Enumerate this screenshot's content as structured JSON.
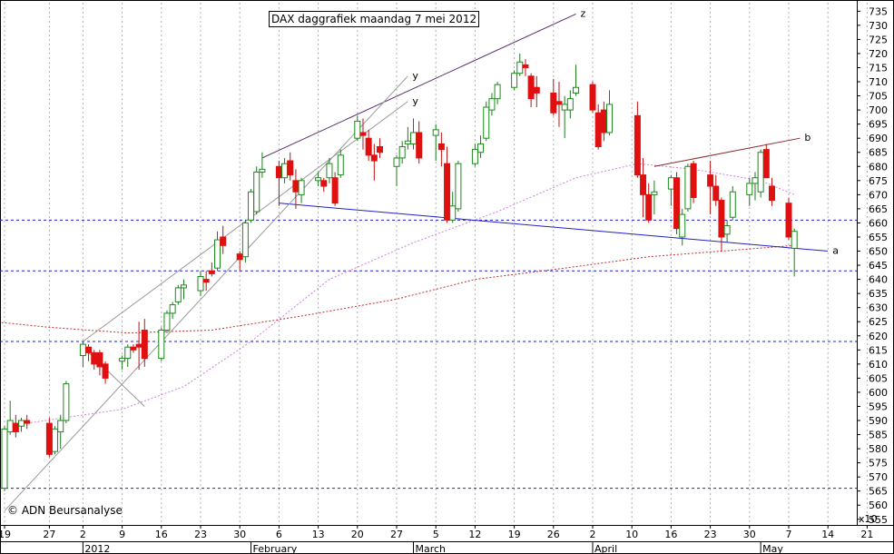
{
  "title": "DAX daggrafiek maandag 7 mei 2012",
  "copyright": "© ADN Beursanalyse",
  "scale_label": "x10",
  "chart_data": {
    "type": "candlestick",
    "title": "DAX daggrafiek maandag 7 mei 2012",
    "price_scale_factor": 10,
    "ylim": [
      553,
      738
    ],
    "y_ticks": [
      555,
      560,
      565,
      570,
      575,
      580,
      585,
      590,
      595,
      600,
      605,
      610,
      615,
      620,
      625,
      630,
      635,
      640,
      645,
      650,
      655,
      660,
      665,
      670,
      675,
      680,
      685,
      690,
      695,
      700,
      705,
      710,
      715,
      720,
      725,
      730,
      735
    ],
    "x_tick_labels": [
      {
        "date": "2011-12-19",
        "label": "19"
      },
      {
        "date": "2011-12-27",
        "label": "27"
      },
      {
        "date": "2012-01-02",
        "label": "2"
      },
      {
        "date": "2012-01-09",
        "label": "9"
      },
      {
        "date": "2012-01-16",
        "label": "16"
      },
      {
        "date": "2012-01-23",
        "label": "23"
      },
      {
        "date": "2012-01-30",
        "label": "30"
      },
      {
        "date": "2012-02-06",
        "label": "6"
      },
      {
        "date": "2012-02-13",
        "label": "13"
      },
      {
        "date": "2012-02-20",
        "label": "20"
      },
      {
        "date": "2012-02-27",
        "label": "27"
      },
      {
        "date": "2012-03-05",
        "label": "5"
      },
      {
        "date": "2012-03-12",
        "label": "12"
      },
      {
        "date": "2012-03-19",
        "label": "19"
      },
      {
        "date": "2012-03-26",
        "label": "26"
      },
      {
        "date": "2012-04-02",
        "label": "2"
      },
      {
        "date": "2012-04-09",
        "label": "10"
      },
      {
        "date": "2012-04-16",
        "label": "16"
      },
      {
        "date": "2012-04-23",
        "label": "23"
      },
      {
        "date": "2012-04-30",
        "label": "30"
      },
      {
        "date": "2012-05-07",
        "label": "7"
      },
      {
        "date": "2012-05-14",
        "label": "14"
      },
      {
        "date": "2012-05-21",
        "label": "21"
      }
    ],
    "month_labels": [
      {
        "date": "2012-01-02",
        "label": "2012"
      },
      {
        "date": "2012-02-01",
        "label": "February"
      },
      {
        "date": "2012-03-01",
        "label": "March"
      },
      {
        "date": "2012-04-02",
        "label": "April"
      },
      {
        "date": "2012-05-02",
        "label": "May"
      }
    ],
    "candles": [
      {
        "date": "2011-12-19",
        "open": 566,
        "high": 588,
        "low": 565,
        "close": 587
      },
      {
        "date": "2011-12-20",
        "open": 586,
        "high": 597,
        "low": 585,
        "close": 590
      },
      {
        "date": "2011-12-21",
        "open": 589,
        "high": 592,
        "low": 584,
        "close": 586
      },
      {
        "date": "2011-12-22",
        "open": 588,
        "high": 591,
        "low": 586,
        "close": 590
      },
      {
        "date": "2011-12-23",
        "open": 590,
        "high": 592,
        "low": 587,
        "close": 589
      },
      {
        "date": "2011-12-27",
        "open": 589,
        "high": 591,
        "low": 577,
        "close": 578
      },
      {
        "date": "2011-12-28",
        "open": 579,
        "high": 588,
        "low": 578,
        "close": 587
      },
      {
        "date": "2011-12-29",
        "open": 586,
        "high": 592,
        "low": 580,
        "close": 590
      },
      {
        "date": "2011-12-30",
        "open": 590,
        "high": 604,
        "low": 589,
        "close": 603
      },
      {
        "date": "2012-01-02",
        "open": 613,
        "high": 618,
        "low": 609,
        "close": 617
      },
      {
        "date": "2012-01-03",
        "open": 616,
        "high": 617,
        "low": 611,
        "close": 614
      },
      {
        "date": "2012-01-04",
        "open": 614,
        "high": 615,
        "low": 608,
        "close": 610
      },
      {
        "date": "2012-01-05",
        "open": 614,
        "high": 615,
        "low": 606,
        "close": 609
      },
      {
        "date": "2012-01-06",
        "open": 610,
        "high": 611,
        "low": 603,
        "close": 605
      },
      {
        "date": "2012-01-09",
        "open": 611,
        "high": 613,
        "low": 608,
        "close": 612
      },
      {
        "date": "2012-01-10",
        "open": 612,
        "high": 617,
        "low": 609,
        "close": 616
      },
      {
        "date": "2012-01-11",
        "open": 616,
        "high": 617,
        "low": 614,
        "close": 615
      },
      {
        "date": "2012-01-12",
        "open": 617,
        "high": 625,
        "low": 608,
        "close": 616
      },
      {
        "date": "2012-01-13",
        "open": 622,
        "high": 626,
        "low": 609,
        "close": 612
      },
      {
        "date": "2012-01-16",
        "open": 612,
        "high": 623,
        "low": 611,
        "close": 622
      },
      {
        "date": "2012-01-17",
        "open": 622,
        "high": 629,
        "low": 621,
        "close": 628
      },
      {
        "date": "2012-01-18",
        "open": 628,
        "high": 632,
        "low": 626,
        "close": 631
      },
      {
        "date": "2012-01-19",
        "open": 632,
        "high": 638,
        "low": 631,
        "close": 637
      },
      {
        "date": "2012-01-20",
        "open": 637,
        "high": 640,
        "low": 633,
        "close": 638
      },
      {
        "date": "2012-01-23",
        "open": 636,
        "high": 643,
        "low": 634,
        "close": 641
      },
      {
        "date": "2012-01-24",
        "open": 640,
        "high": 643,
        "low": 636,
        "close": 639
      },
      {
        "date": "2012-01-25",
        "open": 643,
        "high": 646,
        "low": 641,
        "close": 642
      },
      {
        "date": "2012-01-26",
        "open": 644,
        "high": 657,
        "low": 643,
        "close": 654
      },
      {
        "date": "2012-01-27",
        "open": 655,
        "high": 659,
        "low": 649,
        "close": 652
      },
      {
        "date": "2012-01-30",
        "open": 649,
        "high": 650,
        "low": 643,
        "close": 647
      },
      {
        "date": "2012-01-31",
        "open": 648,
        "high": 661,
        "low": 646,
        "close": 660
      },
      {
        "date": "2012-02-01",
        "open": 661,
        "high": 672,
        "low": 660,
        "close": 671
      },
      {
        "date": "2012-02-02",
        "open": 664,
        "high": 680,
        "low": 663,
        "close": 678
      },
      {
        "date": "2012-02-03",
        "open": 678,
        "high": 685,
        "low": 676,
        "close": 679
      },
      {
        "date": "2012-02-06",
        "open": 680,
        "high": 682,
        "low": 666,
        "close": 676
      },
      {
        "date": "2012-02-07",
        "open": 676,
        "high": 683,
        "low": 674,
        "close": 681
      },
      {
        "date": "2012-02-08",
        "open": 682,
        "high": 685,
        "low": 675,
        "close": 677
      },
      {
        "date": "2012-02-09",
        "open": 675,
        "high": 679,
        "low": 665,
        "close": 671
      },
      {
        "date": "2012-02-10",
        "open": 670,
        "high": 676,
        "low": 667,
        "close": 675
      },
      {
        "date": "2012-02-13",
        "open": 675,
        "high": 678,
        "low": 673,
        "close": 676
      },
      {
        "date": "2012-02-14",
        "open": 675,
        "high": 676,
        "low": 671,
        "close": 673
      },
      {
        "date": "2012-02-15",
        "open": 676,
        "high": 683,
        "low": 674,
        "close": 681
      },
      {
        "date": "2012-02-16",
        "open": 676,
        "high": 678,
        "low": 666,
        "close": 667
      },
      {
        "date": "2012-02-17",
        "open": 677,
        "high": 686,
        "low": 676,
        "close": 684
      },
      {
        "date": "2012-02-20",
        "open": 690,
        "high": 698,
        "low": 689,
        "close": 696
      },
      {
        "date": "2012-02-21",
        "open": 692,
        "high": 697,
        "low": 686,
        "close": 691
      },
      {
        "date": "2012-02-22",
        "open": 690,
        "high": 693,
        "low": 682,
        "close": 684
      },
      {
        "date": "2012-02-23",
        "open": 684,
        "high": 688,
        "low": 675,
        "close": 682
      },
      {
        "date": "2012-02-24",
        "open": 687,
        "high": 690,
        "low": 683,
        "close": 685
      },
      {
        "date": "2012-02-27",
        "open": 680,
        "high": 684,
        "low": 673,
        "close": 683
      },
      {
        "date": "2012-02-28",
        "open": 683,
        "high": 689,
        "low": 681,
        "close": 687
      },
      {
        "date": "2012-02-29",
        "open": 688,
        "high": 694,
        "low": 686,
        "close": 689
      },
      {
        "date": "2012-03-01",
        "open": 688,
        "high": 697,
        "low": 686,
        "close": 692
      },
      {
        "date": "2012-03-02",
        "open": 692,
        "high": 696,
        "low": 681,
        "close": 683
      },
      {
        "date": "2012-03-05",
        "open": 691,
        "high": 695,
        "low": 682,
        "close": 693
      },
      {
        "date": "2012-03-06",
        "open": 688,
        "high": 692,
        "low": 680,
        "close": 686
      },
      {
        "date": "2012-03-07",
        "open": 681,
        "high": 687,
        "low": 660,
        "close": 661
      },
      {
        "date": "2012-03-08",
        "open": 661,
        "high": 671,
        "low": 660,
        "close": 666
      },
      {
        "date": "2012-03-09",
        "open": 665,
        "high": 682,
        "low": 664,
        "close": 681
      },
      {
        "date": "2012-03-12",
        "open": 681,
        "high": 688,
        "low": 680,
        "close": 686
      },
      {
        "date": "2012-03-13",
        "open": 685,
        "high": 691,
        "low": 683,
        "close": 688
      },
      {
        "date": "2012-03-14",
        "open": 690,
        "high": 703,
        "low": 689,
        "close": 701
      },
      {
        "date": "2012-03-15",
        "open": 700,
        "high": 706,
        "low": 698,
        "close": 704
      },
      {
        "date": "2012-03-16",
        "open": 704,
        "high": 710,
        "low": 702,
        "close": 709
      },
      {
        "date": "2012-03-19",
        "open": 708,
        "high": 714,
        "low": 707,
        "close": 713
      },
      {
        "date": "2012-03-20",
        "open": 713,
        "high": 720,
        "low": 712,
        "close": 717
      },
      {
        "date": "2012-03-21",
        "open": 716,
        "high": 718,
        "low": 712,
        "close": 715
      },
      {
        "date": "2012-03-22",
        "open": 712,
        "high": 713,
        "low": 701,
        "close": 704
      },
      {
        "date": "2012-03-23",
        "open": 708,
        "high": 712,
        "low": 701,
        "close": 706
      },
      {
        "date": "2012-03-26",
        "open": 706,
        "high": 711,
        "low": 698,
        "close": 699
      },
      {
        "date": "2012-03-27",
        "open": 703,
        "high": 710,
        "low": 694,
        "close": 702
      },
      {
        "date": "2012-03-28",
        "open": 700,
        "high": 705,
        "low": 690,
        "close": 702
      },
      {
        "date": "2012-03-29",
        "open": 700,
        "high": 707,
        "low": 697,
        "close": 704
      },
      {
        "date": "2012-03-30",
        "open": 706,
        "high": 716,
        "low": 705,
        "close": 708
      },
      {
        "date": "2012-04-02",
        "open": 709,
        "high": 710,
        "low": 699,
        "close": 700
      },
      {
        "date": "2012-04-03",
        "open": 699,
        "high": 702,
        "low": 686,
        "close": 687
      },
      {
        "date": "2012-04-04",
        "open": 700,
        "high": 703,
        "low": 689,
        "close": 692
      },
      {
        "date": "2012-04-05",
        "open": 692,
        "high": 707,
        "low": 691,
        "close": 702
      },
      {
        "date": "2012-04-10",
        "open": 698,
        "high": 703,
        "low": 676,
        "close": 677
      },
      {
        "date": "2012-04-11",
        "open": 677,
        "high": 683,
        "low": 662,
        "close": 670
      },
      {
        "date": "2012-04-12",
        "open": 670,
        "high": 674,
        "low": 660,
        "close": 661
      },
      {
        "date": "2012-04-13",
        "open": 670,
        "high": 675,
        "low": 663,
        "close": 671
      },
      {
        "date": "2012-04-16",
        "open": 672,
        "high": 677,
        "low": 666,
        "close": 676
      },
      {
        "date": "2012-04-17",
        "open": 676,
        "high": 678,
        "low": 656,
        "close": 658
      },
      {
        "date": "2012-04-18",
        "open": 655,
        "high": 665,
        "low": 652,
        "close": 663
      },
      {
        "date": "2012-04-19",
        "open": 665,
        "high": 681,
        "low": 664,
        "close": 680
      },
      {
        "date": "2012-04-20",
        "open": 681,
        "high": 682,
        "low": 667,
        "close": 669
      },
      {
        "date": "2012-04-23",
        "open": 677,
        "high": 682,
        "low": 663,
        "close": 673
      },
      {
        "date": "2012-04-24",
        "open": 673,
        "high": 677,
        "low": 666,
        "close": 668
      },
      {
        "date": "2012-04-25",
        "open": 668,
        "high": 669,
        "low": 650,
        "close": 655
      },
      {
        "date": "2012-04-26",
        "open": 656,
        "high": 661,
        "low": 653,
        "close": 659
      },
      {
        "date": "2012-04-27",
        "open": 662,
        "high": 673,
        "low": 661,
        "close": 671
      },
      {
        "date": "2012-04-30",
        "open": 670,
        "high": 676,
        "low": 666,
        "close": 674
      },
      {
        "date": "2012-05-01",
        "open": 674,
        "high": 678,
        "low": 668,
        "close": 676
      },
      {
        "date": "2012-05-02",
        "open": 671,
        "high": 686,
        "low": 669,
        "close": 685
      },
      {
        "date": "2012-05-03",
        "open": 686,
        "high": 688,
        "low": 676,
        "close": 676
      },
      {
        "date": "2012-05-04",
        "open": 673,
        "high": 676,
        "low": 666,
        "close": 668
      },
      {
        "date": "2012-05-07",
        "open": 667,
        "high": 669,
        "low": 654,
        "close": 655
      },
      {
        "date": "2012-05-08",
        "open": 651,
        "high": 658,
        "low": 641,
        "close": 657
      }
    ],
    "horizontal_levels": [
      {
        "value": 661,
        "color": "#2020c0",
        "style": "dashed"
      },
      {
        "value": 643,
        "color": "#2020c0",
        "style": "dashed"
      },
      {
        "value": 618,
        "color": "#2020c0",
        "style": "dashed"
      },
      {
        "value": 566,
        "color": "#2020c0",
        "style": "dashed"
      }
    ],
    "trendlines": [
      {
        "name": "z",
        "color": "#5a2a6a",
        "from": {
          "date": "2012-02-03",
          "value": 683
        },
        "to": {
          "date": "2012-03-30",
          "value": 734
        },
        "labelled": true
      },
      {
        "name": "b",
        "color": "#8a2a2a",
        "from": {
          "date": "2012-04-13",
          "value": 680
        },
        "to": {
          "date": "2012-05-09",
          "value": 690
        },
        "labelled": true
      },
      {
        "name": "a",
        "color": "#2020c0",
        "from": {
          "date": "2012-02-06",
          "value": 667
        },
        "to": {
          "date": "2012-05-14",
          "value": 650
        },
        "labelled": true
      },
      {
        "name": "y",
        "color": "#9a9a9a",
        "from": {
          "date": "2011-12-19",
          "value": 558
        },
        "to": {
          "date": "2012-02-29",
          "value": 712
        },
        "labelled": true
      },
      {
        "name": "y",
        "color": "#9a9a9a",
        "from": {
          "date": "2012-01-02",
          "value": 618
        },
        "to": {
          "date": "2012-02-29",
          "value": 703
        },
        "labelled": true
      },
      {
        "name": "",
        "color": "#9a9a9a",
        "from": {
          "date": "2012-01-02",
          "value": 616
        },
        "to": {
          "date": "2012-01-13",
          "value": 595
        },
        "labelled": false
      }
    ],
    "moving_averages": [
      {
        "color": "#d080e0",
        "style": "dotted",
        "points": [
          {
            "date": "2011-12-23",
            "value": 589
          },
          {
            "date": "2012-01-09",
            "value": 594
          },
          {
            "date": "2012-01-20",
            "value": 602
          },
          {
            "date": "2012-02-01",
            "value": 618
          },
          {
            "date": "2012-02-15",
            "value": 640
          },
          {
            "date": "2012-03-01",
            "value": 653
          },
          {
            "date": "2012-03-16",
            "value": 664
          },
          {
            "date": "2012-03-30",
            "value": 676
          },
          {
            "date": "2012-04-10",
            "value": 681
          },
          {
            "date": "2012-04-20",
            "value": 679
          },
          {
            "date": "2012-05-02",
            "value": 675
          },
          {
            "date": "2012-05-08",
            "value": 670
          }
        ]
      },
      {
        "color": "#c03030",
        "style": "dotted",
        "points": [
          {
            "date": "2011-12-12",
            "value": 626
          },
          {
            "date": "2011-12-27",
            "value": 623
          },
          {
            "date": "2012-01-10",
            "value": 621
          },
          {
            "date": "2012-01-25",
            "value": 622
          },
          {
            "date": "2012-02-10",
            "value": 627
          },
          {
            "date": "2012-02-27",
            "value": 633
          },
          {
            "date": "2012-03-12",
            "value": 640
          },
          {
            "date": "2012-03-28",
            "value": 644
          },
          {
            "date": "2012-04-12",
            "value": 648
          },
          {
            "date": "2012-04-25",
            "value": 650
          },
          {
            "date": "2012-05-08",
            "value": 652
          }
        ]
      }
    ]
  }
}
